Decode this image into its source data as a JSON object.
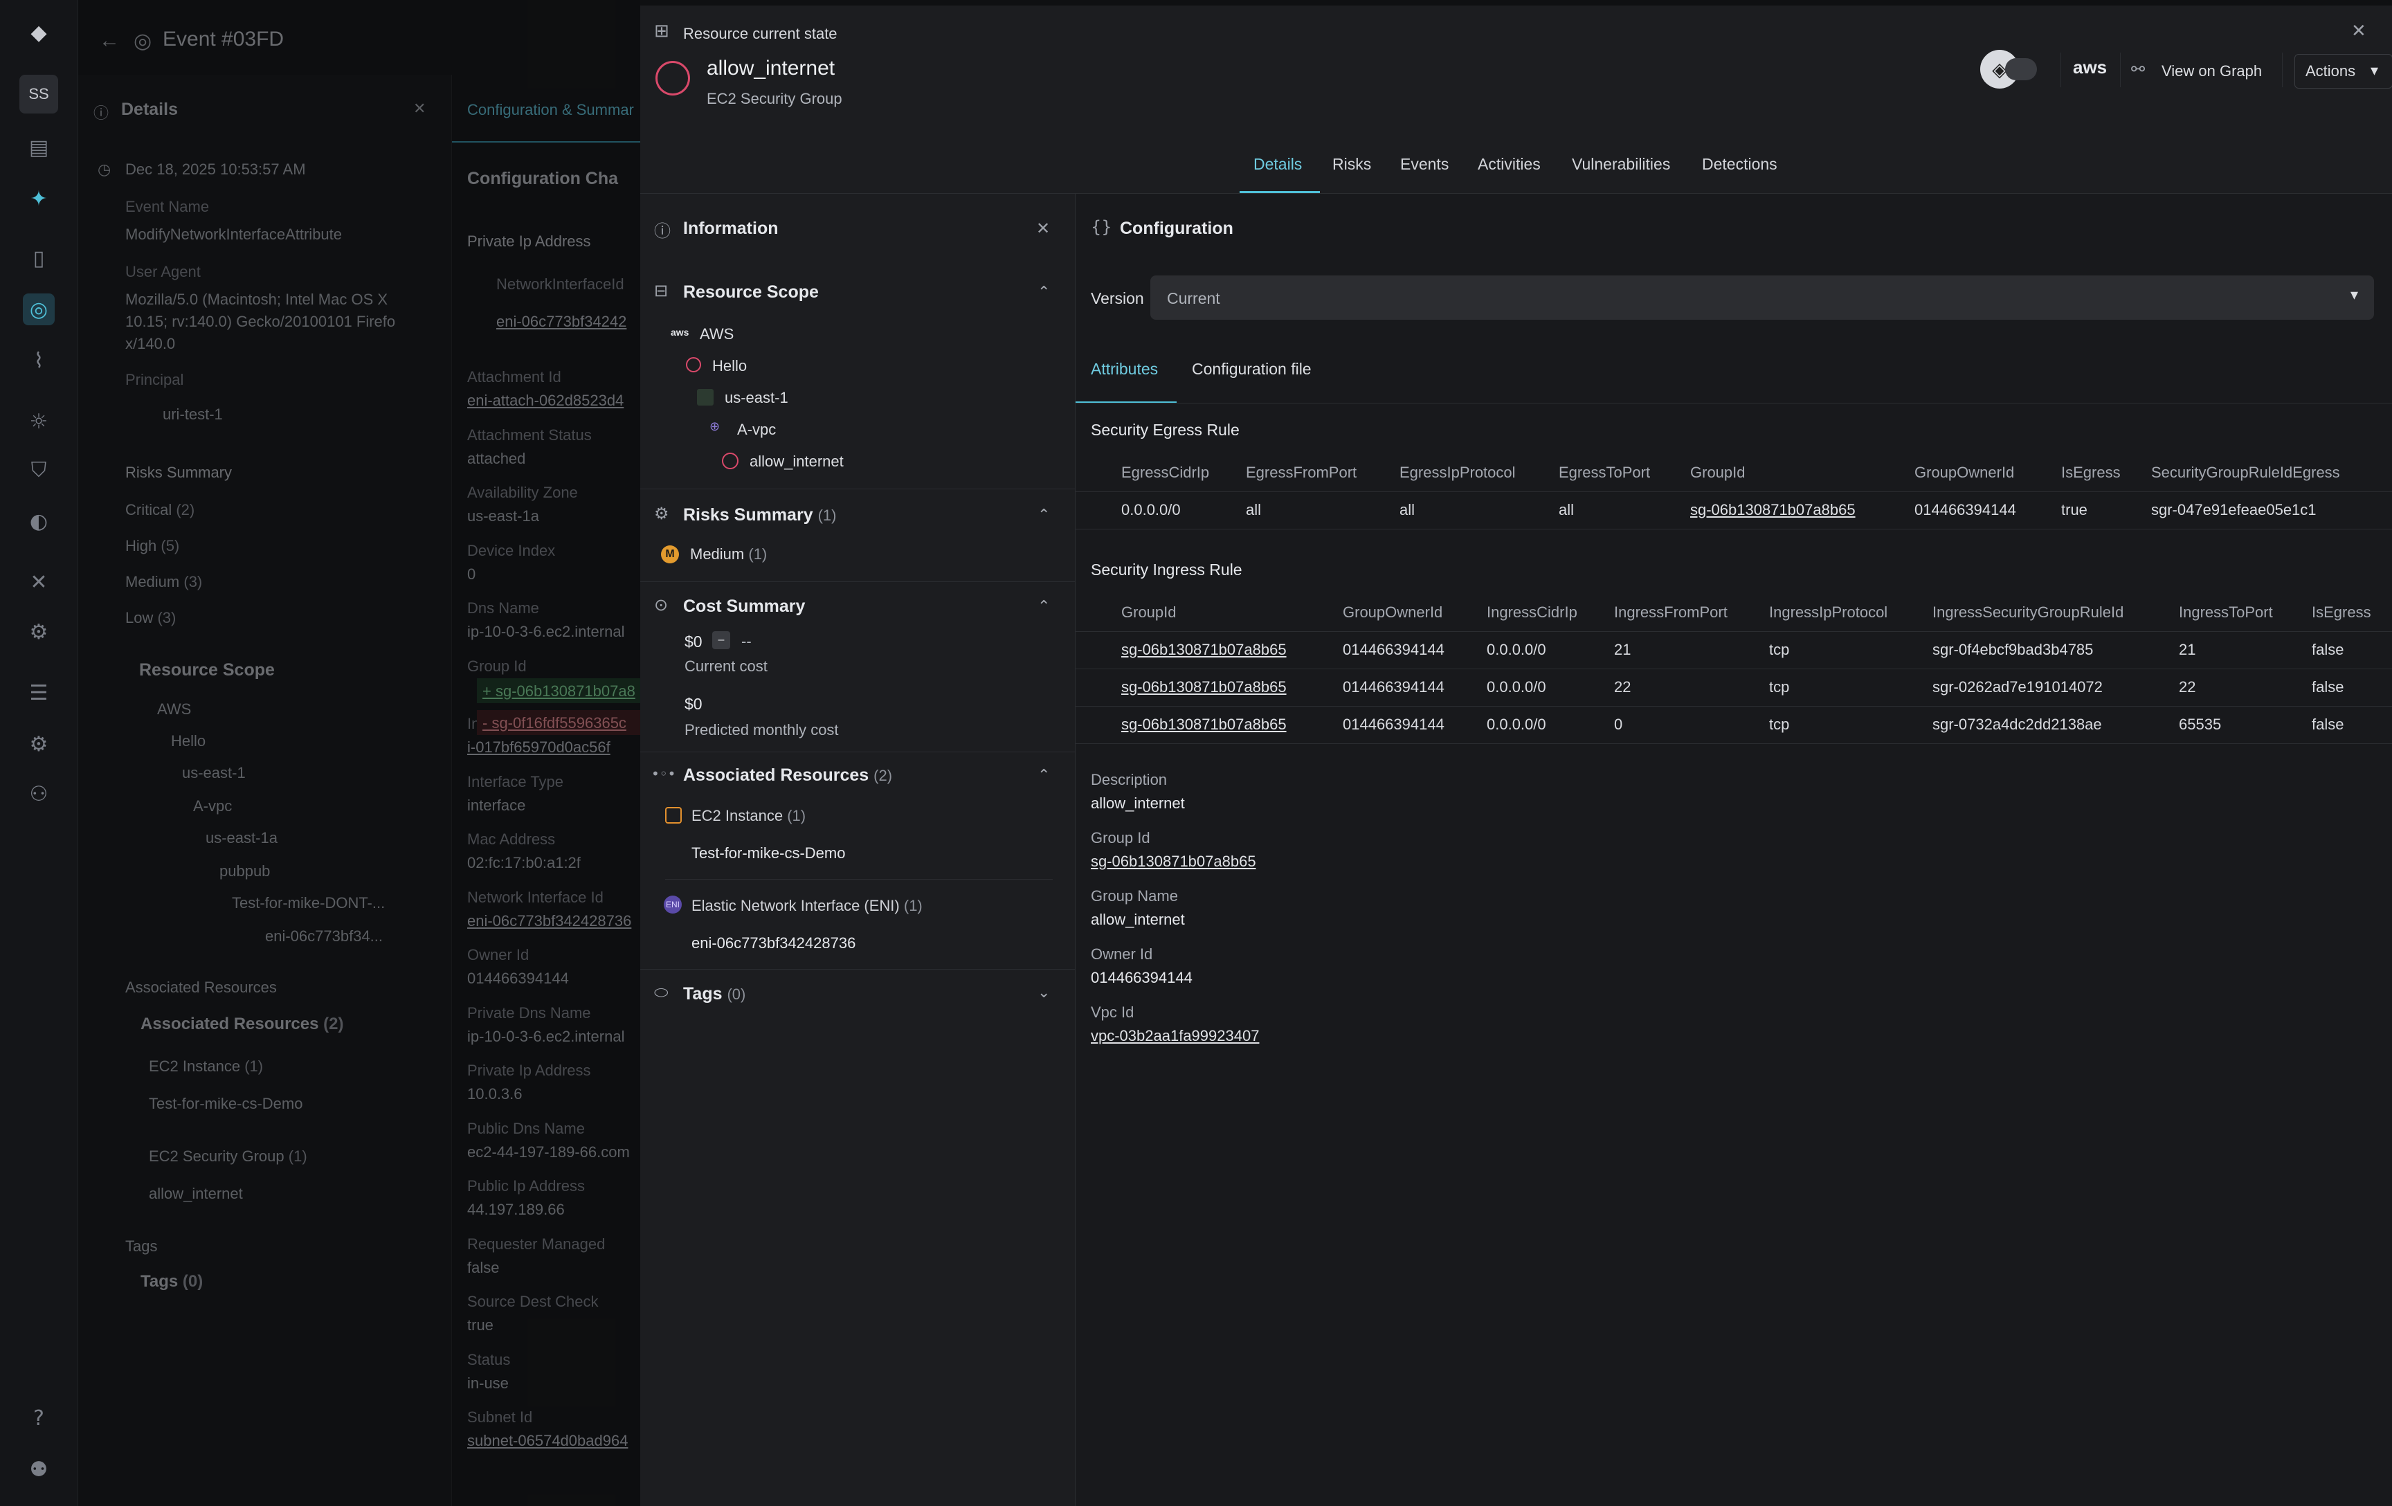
{
  "rail": {
    "avatar": "SS"
  },
  "bg": {
    "title": "Event #03FD",
    "details_title": "Details",
    "date": "Dec 18, 2025 10:53:57 AM",
    "event_name_label": "Event Name",
    "event_name": "ModifyNetworkInterfaceAttribute",
    "user_agent_label": "User Agent",
    "user_agent_1": "Mozilla/5.0 (Macintosh; Intel Mac OS X",
    "user_agent_2": "10.15; rv:140.0) Gecko/20100101 Firefo",
    "user_agent_3": "x/140.0",
    "principal_label": "Principal",
    "principal": "uri-test-1",
    "risks_title": "Risks Summary",
    "risk_critical": "Critical",
    "risk_critical_count": "(2)",
    "risk_high": "High",
    "risk_high_count": "(5)",
    "risk_medium": "Medium",
    "risk_medium_count": "(3)",
    "risk_low": "Low",
    "risk_low_count": "(3)",
    "scope_title": "Resource Scope",
    "scope_aws": "AWS",
    "scope_hello": "Hello",
    "scope_region": "us-east-1",
    "scope_vpc": "A-vpc",
    "scope_az": "us-east-1a",
    "scope_subnet": "pubpub",
    "scope_instance": "Test-for-mike-DONT-...",
    "scope_eni": "eni-06c773bf34...",
    "assoc_title": "Associated Resources",
    "assoc_sub": "Associated Resources",
    "assoc_count": "(2)",
    "assoc_ec2": "EC2 Instance",
    "assoc_ec2_count": "(1)",
    "assoc_ec2_item": "Test-for-mike-cs-Demo",
    "assoc_sg": "EC2 Security Group",
    "assoc_sg_count": "(1)",
    "assoc_sg_item": "allow_internet",
    "tags_title": "Tags",
    "tags_sub": "Tags",
    "tags_count": "(0)",
    "tab_config": "Configuration & Summar",
    "config_changes": "Configuration Cha",
    "private_ip_label": "Private Ip Address",
    "nic_col": "NetworkInterfaceId",
    "nic_val": "eni-06c773bf34242",
    "fields": [
      {
        "label": "Attachment Id",
        "value": "eni-attach-062d8523d4"
      },
      {
        "label": "Attachment Status",
        "value": "attached"
      },
      {
        "label": "Availability Zone",
        "value": "us-east-1a"
      },
      {
        "label": "Device Index",
        "value": "0"
      },
      {
        "label": "Dns Name",
        "value": "ip-10-0-3-6.ec2.internal"
      },
      {
        "label": "Group Id",
        "value": ""
      },
      {
        "label": "Instance Id",
        "value": "i-017bf65970d0ac56f"
      },
      {
        "label": "Interface Type",
        "value": "interface"
      },
      {
        "label": "Mac Address",
        "value": "02:fc:17:b0:a1:2f"
      },
      {
        "label": "Network Interface Id",
        "value": "eni-06c773bf342428736"
      },
      {
        "label": "Owner Id",
        "value": "014466394144"
      },
      {
        "label": "Private Dns Name",
        "value": "ip-10-0-3-6.ec2.internal"
      },
      {
        "label": "Private Ip Address",
        "value": "10.0.3.6"
      },
      {
        "label": "Public Dns Name",
        "value": "ec2-44-197-189-66.com"
      },
      {
        "label": "Public Ip Address",
        "value": "44.197.189.66"
      },
      {
        "label": "Requester Managed",
        "value": "false"
      },
      {
        "label": "Source Dest Check",
        "value": "true"
      },
      {
        "label": "Status",
        "value": "in-use"
      },
      {
        "label": "Subnet Id",
        "value": "subnet-06574d0bad964"
      }
    ],
    "group_added": "+ sg-06b130871b07a8",
    "group_removed": "- sg-0f16fdf5596365c"
  },
  "modal": {
    "header_label": "Resource current state",
    "resource_name": "allow_internet",
    "resource_type": "EC2 Security Group",
    "aws_label": "aws",
    "view_graph": "View on Graph",
    "actions": "Actions",
    "tabs": [
      "Details",
      "Risks",
      "Events",
      "Activities",
      "Vulnerabilities",
      "Detections"
    ]
  },
  "info": {
    "title": "Information",
    "scope_title": "Resource Scope",
    "scope": [
      "AWS",
      "Hello",
      "us-east-1",
      "A-vpc",
      "allow_internet"
    ],
    "risks_title": "Risks Summary",
    "risks_count": "(1)",
    "risk_medium": "Medium",
    "risk_medium_count": "(1)",
    "risk_badge": "M",
    "cost_title": "Cost Summary",
    "current_cost": "$0",
    "current_delta": "--",
    "current_label": "Current cost",
    "predicted_cost": "$0",
    "predicted_label": "Predicted monthly cost",
    "assoc_title": "Associated Resources",
    "assoc_count": "(2)",
    "ec2_label": "EC2 Instance",
    "ec2_count": "(1)",
    "ec2_item": "Test-for-mike-cs-Demo",
    "eni_label": "Elastic Network Interface (ENI)",
    "eni_count": "(1)",
    "eni_item": "eni-06c773bf342428736",
    "tags_title": "Tags",
    "tags_count": "(0)"
  },
  "config": {
    "title": "Configuration",
    "version_label": "Version",
    "version_value": "Current",
    "subtabs": [
      "Attributes",
      "Configuration file"
    ],
    "egress_title": "Security Egress Rule",
    "egress_cols": [
      "EgressCidrIp",
      "EgressFromPort",
      "EgressIpProtocol",
      "EgressToPort",
      "GroupId",
      "GroupOwnerId",
      "IsEgress",
      "SecurityGroupRuleIdEgress"
    ],
    "egress_rows": [
      [
        "0.0.0.0/0",
        "all",
        "all",
        "all",
        "sg-06b130871b07a8b65",
        "014466394144",
        "true",
        "sgr-047e91efeae05e1c1"
      ]
    ],
    "ingress_title": "Security Ingress Rule",
    "ingress_cols": [
      "GroupId",
      "GroupOwnerId",
      "IngressCidrIp",
      "IngressFromPort",
      "IngressIpProtocol",
      "IngressSecurityGroupRuleId",
      "IngressToPort",
      "IsEgress"
    ],
    "ingress_rows": [
      [
        "sg-06b130871b07a8b65",
        "014466394144",
        "0.0.0.0/0",
        "21",
        "tcp",
        "sgr-0f4ebcf9bad3b4785",
        "21",
        "false"
      ],
      [
        "sg-06b130871b07a8b65",
        "014466394144",
        "0.0.0.0/0",
        "22",
        "tcp",
        "sgr-0262ad7e191014072",
        "22",
        "false"
      ],
      [
        "sg-06b130871b07a8b65",
        "014466394144",
        "0.0.0.0/0",
        "0",
        "tcp",
        "sgr-0732a4dc2dd2138ae",
        "65535",
        "false"
      ]
    ],
    "description_label": "Description",
    "description": "allow_internet",
    "group_id_label": "Group Id",
    "group_id": "sg-06b130871b07a8b65",
    "group_name_label": "Group Name",
    "group_name": "allow_internet",
    "owner_id_label": "Owner Id",
    "owner_id": "014466394144",
    "vpc_id_label": "Vpc Id",
    "vpc_id": "vpc-03b2aa1fa99923407"
  }
}
